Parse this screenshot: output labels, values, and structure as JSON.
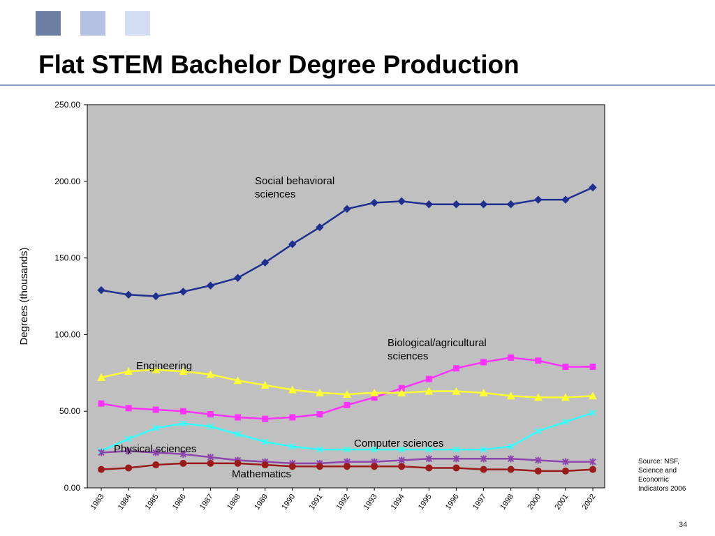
{
  "slide": {
    "title": "Flat STEM Bachelor Degree Production",
    "source": "Source: NSF,\nScience and\nEconomic\nIndicators 2006",
    "page_number": "34",
    "accent_squares": [
      "#6b7fa3",
      "#b3c2e2",
      "#d3ddf3"
    ]
  },
  "chart_data": {
    "type": "line",
    "ylabel": "Degrees (thousands)",
    "ylim": [
      0,
      250
    ],
    "yticks": [
      "0.00",
      "50.00",
      "100.00",
      "150.00",
      "200.00",
      "250.00"
    ],
    "x": [
      "1983",
      "1984",
      "1985",
      "1986",
      "1987",
      "1988",
      "1989",
      "1990",
      "1991",
      "1992",
      "1993",
      "1994",
      "1995",
      "1996",
      "1997",
      "1998",
      "2000",
      "2001",
      "2002"
    ],
    "plot_background": "#c0c0c0",
    "series": [
      {
        "name": "Social behavioral sciences",
        "color": "#1f2f8f",
        "marker": "diamond",
        "values": [
          129,
          126,
          125,
          128,
          132,
          137,
          147,
          159,
          170,
          182,
          186,
          187,
          185,
          185,
          185,
          185,
          188,
          188,
          196
        ]
      },
      {
        "name": "Biological/agricultural sciences",
        "color": "#ff33ff",
        "marker": "square",
        "values": [
          55,
          52,
          51,
          50,
          48,
          46,
          45,
          46,
          48,
          54,
          59,
          65,
          71,
          78,
          82,
          85,
          83,
          79,
          79
        ]
      },
      {
        "name": "Engineering",
        "color": "#ffff33",
        "marker": "triangle",
        "values": [
          72,
          76,
          77,
          76,
          74,
          70,
          67,
          64,
          62,
          61,
          62,
          62,
          63,
          63,
          62,
          60,
          59,
          59,
          60
        ]
      },
      {
        "name": "Computer sciences",
        "color": "#33ffff",
        "marker": "x",
        "values": [
          24,
          32,
          39,
          42,
          40,
          35,
          30,
          27,
          25,
          25,
          25,
          25,
          25,
          25,
          25,
          27,
          37,
          43,
          49
        ]
      },
      {
        "name": "Physical sciences",
        "color": "#8e44ad",
        "marker": "star",
        "values": [
          23,
          24,
          23,
          22,
          20,
          18,
          17,
          16,
          16,
          17,
          17,
          18,
          19,
          19,
          19,
          19,
          18,
          17,
          17
        ]
      },
      {
        "name": "Mathematics",
        "color": "#9b1b1b",
        "marker": "circle",
        "values": [
          12,
          13,
          15,
          16,
          16,
          16,
          15,
          14,
          14,
          14,
          14,
          14,
          13,
          13,
          12,
          12,
          11,
          11,
          12
        ]
      }
    ],
    "annotations": [
      {
        "lines": [
          "Social behavioral",
          "sciences"
        ],
        "series": "Social behavioral sciences"
      },
      {
        "lines": [
          "Biological/agricultural",
          "sciences"
        ],
        "series": "Biological/agricultural sciences"
      },
      {
        "lines": [
          "Engineering"
        ],
        "series": "Engineering"
      },
      {
        "lines": [
          "Computer sciences"
        ],
        "series": "Computer sciences"
      },
      {
        "lines": [
          "Physical sciences"
        ],
        "series": "Physical sciences"
      },
      {
        "lines": [
          "Mathematics"
        ],
        "series": "Mathematics"
      }
    ]
  }
}
